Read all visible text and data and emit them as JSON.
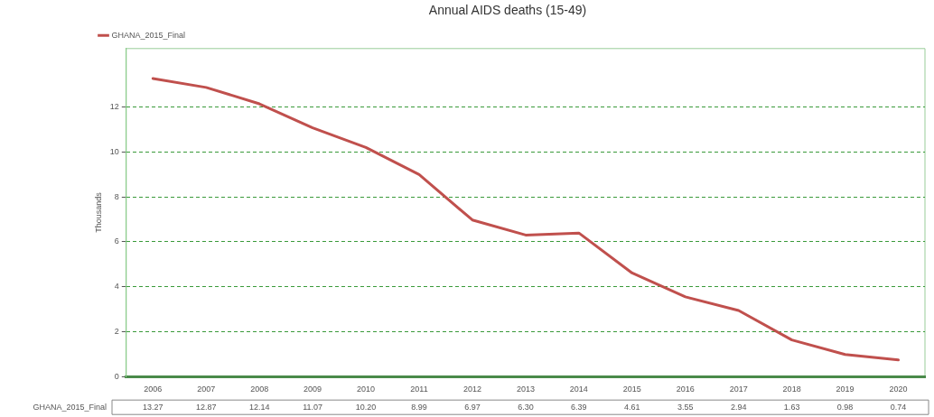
{
  "chart_data": {
    "type": "line",
    "title": "Annual AIDS deaths (15-49)",
    "ylabel": "Thousands",
    "categories": [
      "2006",
      "2007",
      "2008",
      "2009",
      "2010",
      "2011",
      "2012",
      "2013",
      "2014",
      "2015",
      "2016",
      "2017",
      "2018",
      "2019",
      "2020"
    ],
    "series": [
      {
        "name": "GHANA_2015_Final",
        "color": "#c0504d",
        "values": [
          13.27,
          12.87,
          12.14,
          11.07,
          10.2,
          8.99,
          6.97,
          6.3,
          6.39,
          4.61,
          3.55,
          2.94,
          1.63,
          0.98,
          0.74
        ],
        "value_labels": [
          "13.27",
          "12.87",
          "12.14",
          "11.07",
          "10.20",
          "8.99",
          "6.97",
          "6.30",
          "6.39",
          "4.61",
          "3.55",
          "2.94",
          "1.63",
          "0.98",
          "0.74"
        ]
      }
    ],
    "ylim": [
      0,
      14.6
    ],
    "yticks": [
      0,
      2,
      4,
      6,
      8,
      10,
      12
    ],
    "grid": "y",
    "legend": "top left",
    "marker": "none",
    "line_style": "solid"
  }
}
